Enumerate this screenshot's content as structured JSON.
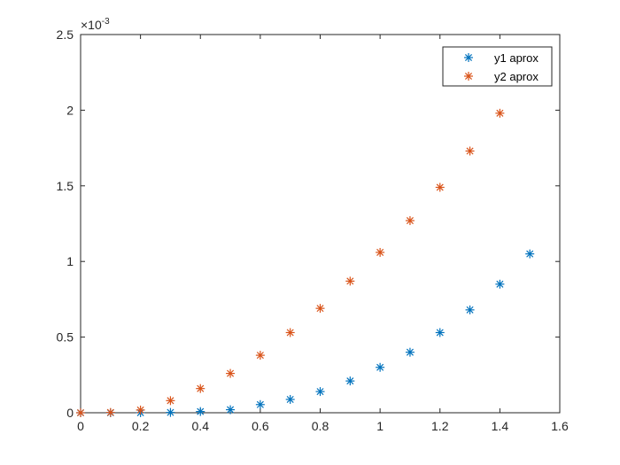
{
  "chart_data": {
    "type": "scatter",
    "title": "",
    "xlabel": "",
    "ylabel": "",
    "xlim": [
      0,
      1.6
    ],
    "ylim": [
      0,
      0.0025
    ],
    "x_ticks": [
      0,
      0.2,
      0.4,
      0.6,
      0.8,
      1,
      1.2,
      1.4,
      1.6
    ],
    "x_tick_labels": [
      "0",
      "0.2",
      "0.4",
      "0.6",
      "0.8",
      "1",
      "1.2",
      "1.4",
      "1.6"
    ],
    "y_ticks": [
      0,
      0.0005,
      0.001,
      0.0015,
      0.002,
      0.0025
    ],
    "y_tick_labels": [
      "0",
      "0.5",
      "1",
      "1.5",
      "2",
      "2.5"
    ],
    "y_exponent": {
      "base": "×10",
      "power": "-3"
    },
    "grid": false,
    "legend_position": "top-right",
    "marker": "asterisk",
    "series": [
      {
        "name": "y1 aprox",
        "color": "#0072BD",
        "x": [
          0,
          0.1,
          0.2,
          0.3,
          0.4,
          0.5,
          0.6,
          0.7,
          0.8,
          0.9,
          1.0,
          1.1,
          1.2,
          1.3,
          1.4,
          1.5
        ],
        "y": [
          0,
          0,
          4e-07,
          2e-06,
          8e-06,
          2e-05,
          5.4e-05,
          8.8e-05,
          0.00014,
          0.00021,
          0.0003,
          0.0004,
          0.00053,
          0.00068,
          0.00085,
          0.00105
        ]
      },
      {
        "name": "y2 aprox",
        "color": "#D95319",
        "x": [
          0,
          0.1,
          0.2,
          0.3,
          0.4,
          0.5,
          0.6,
          0.7,
          0.8,
          0.9,
          1.0,
          1.1,
          1.2,
          1.3,
          1.4
        ],
        "y": [
          0,
          2e-06,
          1.8e-05,
          8e-05,
          0.00016,
          0.00026,
          0.00038,
          0.00053,
          0.00069,
          0.00087,
          0.00106,
          0.00127,
          0.00149,
          0.00173,
          0.00198
        ]
      }
    ]
  }
}
